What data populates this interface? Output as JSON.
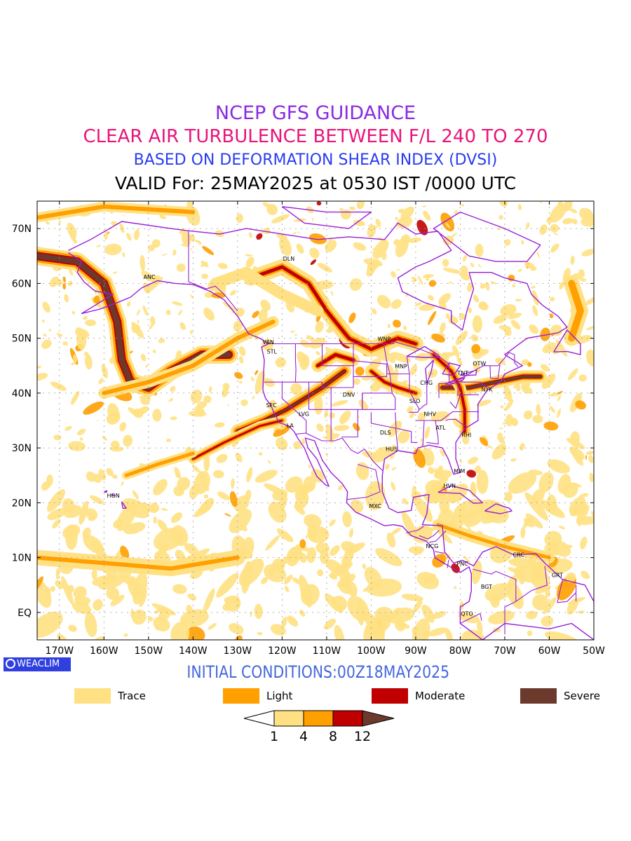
{
  "titles": {
    "line1": {
      "text": "NCEP GFS GUIDANCE",
      "color": "#8a2be2"
    },
    "line2": {
      "text": "CLEAR AIR TURBULENCE BETWEEN F/L 240 TO 270",
      "color": "#e8157a"
    },
    "line3": {
      "text": "BASED ON DEFORMATION SHEAR INDEX (DVSI)",
      "color": "#2a3cf0"
    },
    "line4": {
      "text": "VALID For: 25MAY2025 at 0530 IST /0000 UTC",
      "color": "#000000"
    }
  },
  "map": {
    "projection": "lat-lon",
    "lon_range": [
      -175,
      -50
    ],
    "lat_range": [
      -5,
      75
    ],
    "lat_ticks": [
      {
        "value": 70,
        "label": "70N"
      },
      {
        "value": 60,
        "label": "60N"
      },
      {
        "value": 50,
        "label": "50N"
      },
      {
        "value": 40,
        "label": "40N"
      },
      {
        "value": 30,
        "label": "30N"
      },
      {
        "value": 20,
        "label": "20N"
      },
      {
        "value": 10,
        "label": "10N"
      },
      {
        "value": 0,
        "label": "EQ"
      }
    ],
    "lon_ticks": [
      {
        "value": -170,
        "label": "170W"
      },
      {
        "value": -160,
        "label": "160W"
      },
      {
        "value": -150,
        "label": "150W"
      },
      {
        "value": -140,
        "label": "140W"
      },
      {
        "value": -130,
        "label": "130W"
      },
      {
        "value": -120,
        "label": "120W"
      },
      {
        "value": -110,
        "label": "110W"
      },
      {
        "value": -100,
        "label": "100W"
      },
      {
        "value": -90,
        "label": "90W"
      },
      {
        "value": -80,
        "label": "80W"
      },
      {
        "value": -70,
        "label": "70W"
      },
      {
        "value": -60,
        "label": "60W"
      },
      {
        "value": -50,
        "label": "50W"
      }
    ],
    "stations": [
      {
        "code": "DLN",
        "lon": -118.5,
        "lat": 64.5
      },
      {
        "code": "ANC",
        "lon": -149.8,
        "lat": 61.2
      },
      {
        "code": "VAN",
        "lon": -123.1,
        "lat": 49.3
      },
      {
        "code": "STL",
        "lon": -122.3,
        "lat": 47.6
      },
      {
        "code": "WNP",
        "lon": -97.1,
        "lat": 49.9
      },
      {
        "code": "MNP",
        "lon": -93.3,
        "lat": 44.9
      },
      {
        "code": "TNT",
        "lon": -79.4,
        "lat": 43.7
      },
      {
        "code": "OTW",
        "lon": -75.7,
        "lat": 45.4
      },
      {
        "code": "CHG",
        "lon": -87.6,
        "lat": 41.9
      },
      {
        "code": "NYK",
        "lon": -74.0,
        "lat": 40.7
      },
      {
        "code": "DNV",
        "lon": -105.0,
        "lat": 39.7
      },
      {
        "code": "SFC",
        "lon": -122.4,
        "lat": 37.8
      },
      {
        "code": "LVG",
        "lon": -115.1,
        "lat": 36.2
      },
      {
        "code": "SLO",
        "lon": -90.2,
        "lat": 38.6
      },
      {
        "code": "NHV",
        "lon": -86.8,
        "lat": 36.2
      },
      {
        "code": "LA",
        "lon": -118.2,
        "lat": 34.1
      },
      {
        "code": "ATL",
        "lon": -84.4,
        "lat": 33.7
      },
      {
        "code": "DLS",
        "lon": -96.8,
        "lat": 32.8
      },
      {
        "code": "RHI",
        "lon": -78.6,
        "lat": 32.4
      },
      {
        "code": "HUS",
        "lon": -95.4,
        "lat": 29.8
      },
      {
        "code": "MIM",
        "lon": -80.2,
        "lat": 25.8
      },
      {
        "code": "HVN",
        "lon": -82.4,
        "lat": 23.1
      },
      {
        "code": "HON",
        "lon": -157.9,
        "lat": 21.3
      },
      {
        "code": "MXC",
        "lon": -99.1,
        "lat": 19.4
      },
      {
        "code": "NCG",
        "lon": -86.3,
        "lat": 12.1
      },
      {
        "code": "CRC",
        "lon": -66.9,
        "lat": 10.5
      },
      {
        "code": "PNC",
        "lon": -79.5,
        "lat": 8.9
      },
      {
        "code": "GRT",
        "lon": -58.2,
        "lat": 6.8
      },
      {
        "code": "BGT",
        "lon": -74.1,
        "lat": 4.7
      },
      {
        "code": "QTO",
        "lon": -78.5,
        "lat": -0.2
      }
    ],
    "colors": {
      "trace": "#ffe184",
      "light": "#ff9f00",
      "moderate": "#c00000",
      "severe": "#6b3a2c",
      "boundary": "#9a1fd4",
      "grid": "#9a9a9a"
    }
  },
  "initial_conditions": {
    "text": "INITIAL CONDITIONS:00Z18MAY2025",
    "color": "#4466dd"
  },
  "badge": {
    "text": "WEACLIM"
  },
  "legend": [
    {
      "label": "Trace",
      "color": "#ffe184"
    },
    {
      "label": "Light",
      "color": "#ff9f00"
    },
    {
      "label": "Moderate",
      "color": "#c00000"
    },
    {
      "label": "Severe",
      "color": "#6b3a2c"
    }
  ],
  "colorbar": {
    "levels": [
      "1",
      "4",
      "8",
      "12"
    ],
    "colors": [
      "#ffffff",
      "#ffe184",
      "#ff9f00",
      "#c00000",
      "#6b3a2c"
    ]
  }
}
